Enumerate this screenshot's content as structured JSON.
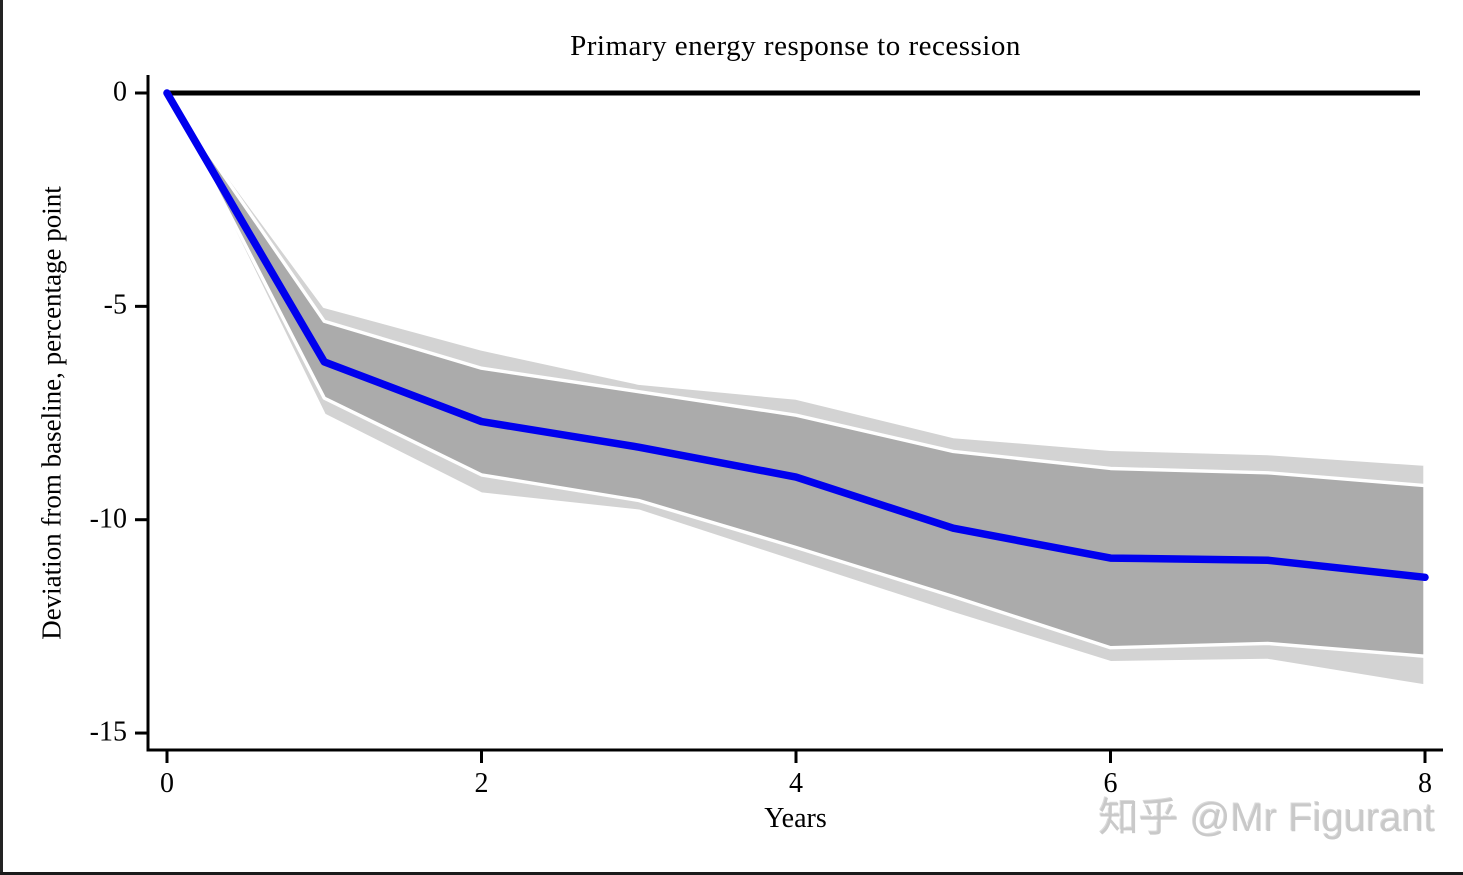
{
  "title": "Primary energy response to recession",
  "watermark": "知乎 @Mr Figurant",
  "colors": {
    "line": "#0000ee",
    "zero_line": "#000000",
    "axis": "#000000",
    "inner_band": "#ababab",
    "outer_band": "#d3d3d3",
    "band_edge": "#ffffff",
    "watermark": "#c9c9c9"
  },
  "chart_data": {
    "type": "line",
    "title": "Primary energy response to recession",
    "xlabel": "Years",
    "ylabel": "Deviation from baseline, percentage point",
    "x": [
      0,
      1,
      2,
      3,
      4,
      5,
      6,
      7,
      8
    ],
    "series": [
      {
        "name": "point-estimate",
        "color": "#0000ee",
        "values": [
          0,
          -6.3,
          -7.7,
          -8.3,
          -9.0,
          -10.2,
          -10.9,
          -10.95,
          -11.35
        ]
      }
    ],
    "bands": [
      {
        "name": "outer-confidence-band",
        "color": "#d3d3d3",
        "upper": [
          0,
          -5.0,
          -6.0,
          -6.8,
          -7.15,
          -8.05,
          -8.35,
          -8.45,
          -8.7
        ],
        "lower": [
          0,
          -7.55,
          -9.4,
          -9.8,
          -11.0,
          -12.2,
          -13.35,
          -13.3,
          -13.9
        ]
      },
      {
        "name": "inner-confidence-band",
        "color": "#ababab",
        "upper": [
          0,
          -5.35,
          -6.45,
          -7.0,
          -7.55,
          -8.4,
          -8.8,
          -8.9,
          -9.2
        ],
        "lower": [
          0,
          -7.15,
          -8.95,
          -9.55,
          -10.65,
          -11.8,
          -13.0,
          -12.9,
          -13.2
        ]
      }
    ],
    "baseline": 0,
    "xticks": [
      0,
      2,
      4,
      6,
      8
    ],
    "yticks": [
      0,
      -5,
      -10,
      -15
    ],
    "xlim": [
      0,
      8
    ],
    "ylim": [
      -15.4,
      0.3
    ],
    "grid": false,
    "legend": "none"
  }
}
